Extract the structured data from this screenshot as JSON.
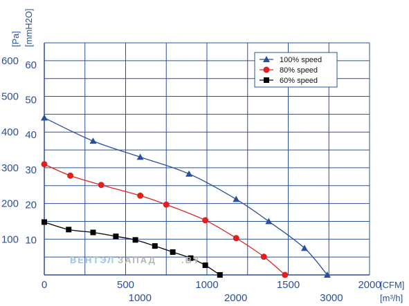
{
  "chart_data": {
    "type": "line",
    "y_axis_labels": [
      "[Pa]",
      "[mmH2O]"
    ],
    "x_axis_labels": [
      "[CFM]",
      "[m³/h]"
    ],
    "pa_ticks": [
      "100",
      "200",
      "300",
      "400",
      "500",
      "600"
    ],
    "mmh2o_ticks": [
      "10",
      "20",
      "30",
      "40",
      "50",
      "60"
    ],
    "cfm_ticks": [
      "0",
      "500",
      "1000",
      "1500",
      "2000"
    ],
    "m3h_ticks": [
      "1000",
      "2000",
      "3000"
    ],
    "xlim_cfm": [
      0,
      2000
    ],
    "ylim_pa": [
      0,
      650
    ],
    "grid": true,
    "legend_position": "top-right",
    "series": [
      {
        "name": "100% speed",
        "marker": "triangle",
        "color": "#2a4f9a",
        "x": [
          0,
          300,
          590,
          890,
          1180,
          1380,
          1600,
          1740
        ],
        "y": [
          440,
          375,
          330,
          283,
          212,
          150,
          75,
          0
        ]
      },
      {
        "name": "80% speed",
        "marker": "circle",
        "color": "#e02020",
        "x": [
          0,
          160,
          350,
          590,
          750,
          990,
          1180,
          1350,
          1480
        ],
        "y": [
          310,
          278,
          252,
          222,
          197,
          153,
          103,
          51,
          0
        ]
      },
      {
        "name": "60% speed",
        "marker": "square",
        "color": "#000000",
        "x": [
          0,
          150,
          300,
          440,
          560,
          680,
          790,
          900,
          990,
          1080
        ],
        "y": [
          148,
          127,
          119,
          108,
          98,
          81,
          64,
          47,
          27,
          0
        ]
      }
    ],
    "watermark": {
      "part1": "ВЕНТЭЛ",
      "part2": "ЗАПАД",
      "part3": ".BY"
    }
  }
}
